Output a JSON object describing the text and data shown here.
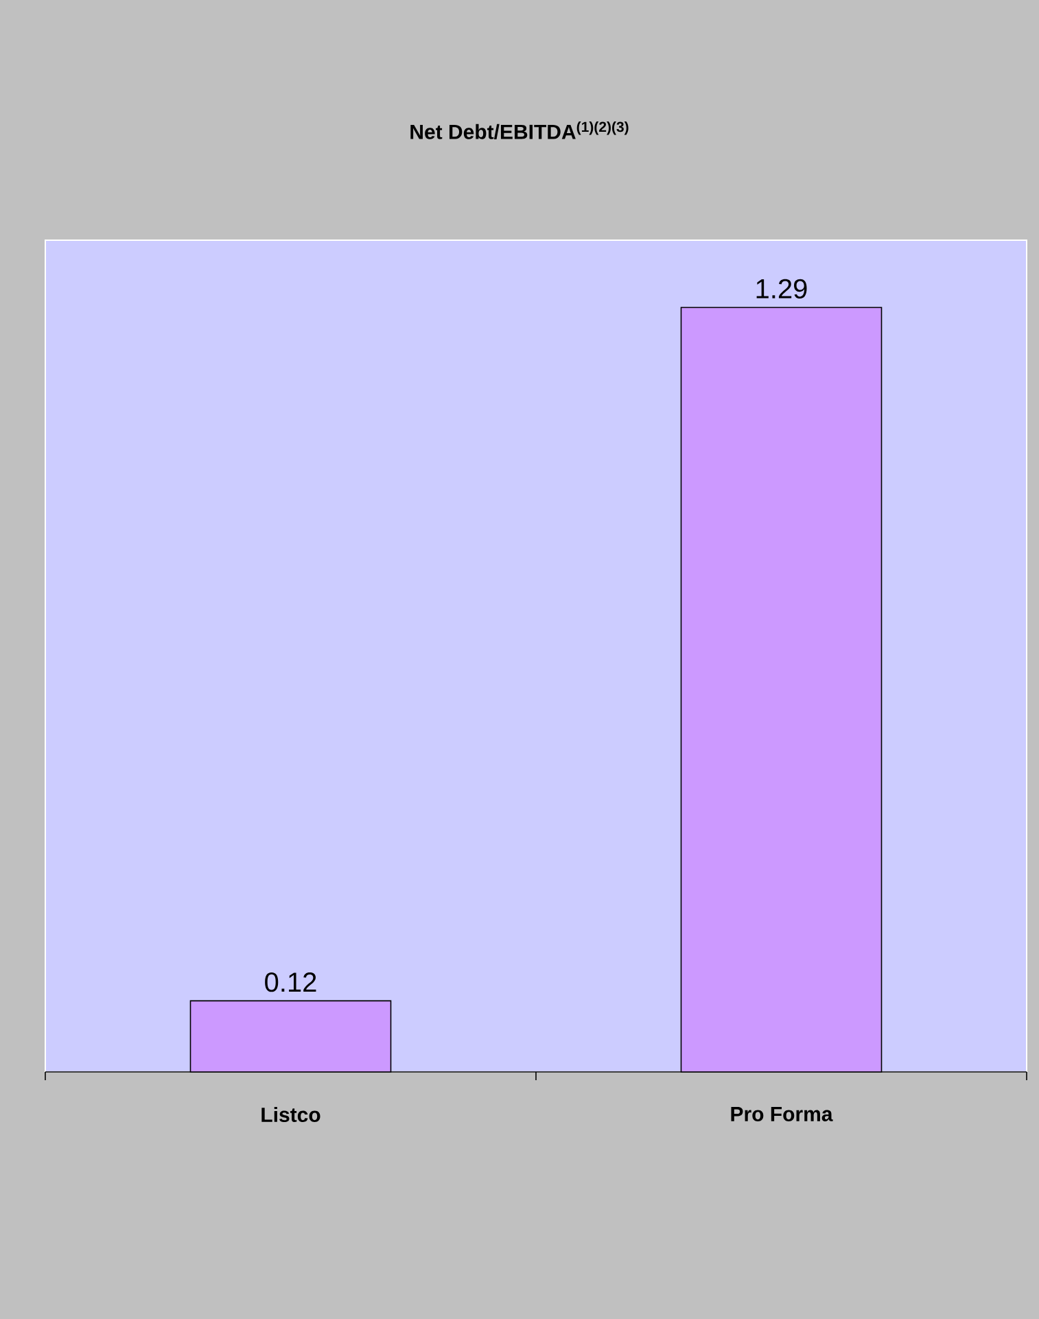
{
  "chart_data": {
    "type": "bar",
    "title": "Net Debt/EBITDA$^{(1)(2)(3)}$",
    "categories": [
      "Listco",
      "Pro Forma"
    ],
    "values": [
      0.12,
      1.29
    ],
    "color": "#cc99ff",
    "data_labels": true
  }
}
